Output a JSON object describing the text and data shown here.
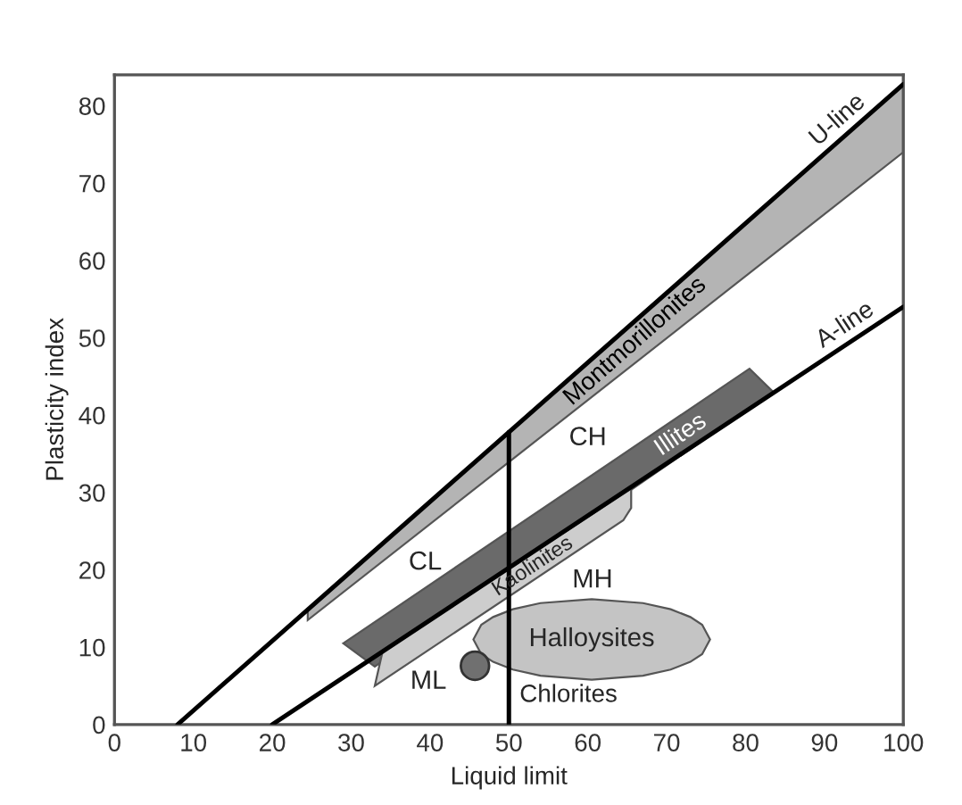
{
  "chart_data": {
    "type": "line",
    "xlabel": "Liquid limit",
    "ylabel": "Plasticity index",
    "xlim": [
      0,
      100
    ],
    "ylim": [
      0,
      84
    ],
    "xticks": [
      0,
      10,
      20,
      30,
      40,
      50,
      60,
      70,
      80,
      90,
      100
    ],
    "yticks": [
      0,
      10,
      20,
      30,
      40,
      50,
      60,
      70,
      80
    ],
    "grid": false,
    "legend": false,
    "series": [
      {
        "name": "U-line",
        "color": "#000000",
        "x": [
          8,
          100
        ],
        "values": [
          0,
          82.8
        ]
      },
      {
        "name": "A-line",
        "color": "#000000",
        "x": [
          20,
          100
        ],
        "values": [
          0,
          54
        ]
      },
      {
        "color": "#000000",
        "x": [
          50,
          50
        ],
        "values": [
          0,
          37.8
        ]
      },
      {
        "name": "Montmorillonites",
        "type": "area",
        "color": "#b4b4b4",
        "x": [
          24.5,
          100,
          100,
          24.5
        ],
        "values": [
          14.9,
          82.8,
          74,
          13.5
        ]
      },
      {
        "name": "Illites",
        "type": "area",
        "color": "#6a6a6a",
        "x": [
          29,
          80.5,
          83.5,
          33
        ],
        "values": [
          10.5,
          46,
          43,
          7.5
        ]
      },
      {
        "name": "Kaolinites",
        "type": "area",
        "color": "#cdcdcd",
        "x": [
          33,
          34,
          65.5,
          65.5,
          64.5
        ],
        "values": [
          5,
          9.5,
          30.5,
          28,
          26.4
        ]
      },
      {
        "name": "Halloysites",
        "type": "area",
        "color": "#c4c4c4",
        "x": [
          45.5,
          46.5,
          48,
          50.5,
          54,
          60.5,
          67,
          70.5,
          73,
          74.5,
          75.5,
          74.5,
          73,
          70.5,
          67,
          60.5,
          54,
          50.5,
          48,
          46.5
        ],
        "values": [
          11,
          12.9,
          13.9,
          14.9,
          15.7,
          16.2,
          15.7,
          14.9,
          13.9,
          12.9,
          11,
          9.1,
          8.1,
          7.1,
          6.3,
          5.8,
          6.3,
          7.1,
          8.1,
          9.1
        ]
      },
      {
        "name": "Chlorites",
        "type": "scatter",
        "color": "#707070",
        "x": [
          45.7
        ],
        "values": [
          7.6
        ]
      }
    ],
    "annotations": [
      "CL",
      "CH",
      "MH",
      "ML"
    ]
  }
}
